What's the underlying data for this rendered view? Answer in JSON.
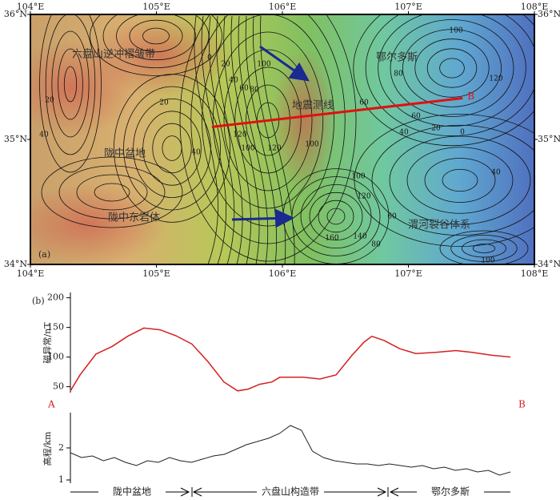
{
  "map": {
    "panel_label": "(a)",
    "xlim": [
      104,
      108
    ],
    "ylim": [
      34,
      36
    ],
    "xticks": [
      {
        "value": 104,
        "label": "104°E"
      },
      {
        "value": 105,
        "label": "105°E"
      },
      {
        "value": 106,
        "label": "106°E"
      },
      {
        "value": 107,
        "label": "107°E"
      },
      {
        "value": 108,
        "label": "108°E"
      }
    ],
    "yticks": [
      {
        "value": 34,
        "label": "34°N"
      },
      {
        "value": 35,
        "label": "35°N"
      },
      {
        "value": 36,
        "label": "36°N"
      }
    ],
    "region_labels": [
      "六盘山逆冲褶皱带",
      "鄂尔多斯",
      "地震测线",
      "陇中盆地",
      "陇中东岩体",
      "渭河裂谷体系"
    ],
    "profile_end_label": "B",
    "profile_line": {
      "lon": [
        105.44,
        107.43
      ],
      "lat": [
        35.1,
        35.33
      ],
      "color": "#e01010"
    },
    "contour_labels": [
      "0",
      "20",
      "40",
      "60",
      "80",
      "100",
      "120",
      "20",
      "40",
      "20",
      "40",
      "60",
      "100",
      "100",
      "120",
      "80",
      "60",
      "40",
      "20",
      "0",
      "40",
      "100",
      "120",
      "160",
      "140",
      "80",
      "100",
      "100",
      "120",
      "60"
    ]
  },
  "chart_data": [
    {
      "type": "line",
      "panel_label": "(b)",
      "ylabel": "磁异常/nT",
      "start_label": "A",
      "end_label": "B",
      "color": "#d42020",
      "x": [
        0,
        2.2,
        5.8,
        9.5,
        13,
        16.7,
        20.4,
        24,
        27.6,
        31.3,
        34.9,
        38,
        40.4,
        43,
        45.8,
        47.6,
        53,
        56.7,
        60.4,
        64,
        66.7,
        68.5,
        71.3,
        74.9,
        78.5,
        83,
        87.6,
        91.3,
        95.8,
        100
      ],
      "values": [
        43,
        70,
        105,
        118,
        135,
        149,
        146,
        136,
        122,
        92,
        58,
        43,
        46,
        54,
        58,
        66,
        66,
        63,
        70,
        103,
        125,
        135,
        128,
        114,
        106,
        108,
        111,
        108,
        103,
        100
      ],
      "xlim": [
        0,
        100
      ],
      "ylim": [
        40,
        209
      ],
      "yticks": [
        50,
        100,
        150,
        200
      ]
    },
    {
      "type": "line",
      "ylabel": "高程/km",
      "color": "#222222",
      "x": [
        0,
        2.5,
        5,
        7.5,
        10,
        12.5,
        15,
        17.5,
        20,
        22.5,
        25,
        27.5,
        30,
        32.5,
        35,
        37.5,
        40,
        42.5,
        45,
        47.5,
        50,
        52.5,
        55,
        57.5,
        60,
        62.5,
        65,
        67.5,
        70,
        72.5,
        75,
        77.5,
        80,
        82.5,
        85,
        87.5,
        90,
        92.5,
        95,
        97.5,
        100
      ],
      "values": [
        1.85,
        1.7,
        1.75,
        1.6,
        1.7,
        1.55,
        1.45,
        1.6,
        1.55,
        1.7,
        1.6,
        1.55,
        1.65,
        1.75,
        1.8,
        1.95,
        2.1,
        2.2,
        2.3,
        2.45,
        2.7,
        2.55,
        1.9,
        1.7,
        1.6,
        1.55,
        1.5,
        1.5,
        1.45,
        1.5,
        1.45,
        1.4,
        1.45,
        1.35,
        1.4,
        1.3,
        1.35,
        1.25,
        1.3,
        1.15,
        1.25
      ],
      "xlim": [
        0,
        100
      ],
      "ylim": [
        0.9,
        3.1
      ],
      "yticks": [
        1,
        2
      ],
      "segments": [
        "陇中盆地",
        "六盘山构造带",
        "鄂尔多斯"
      ]
    }
  ]
}
